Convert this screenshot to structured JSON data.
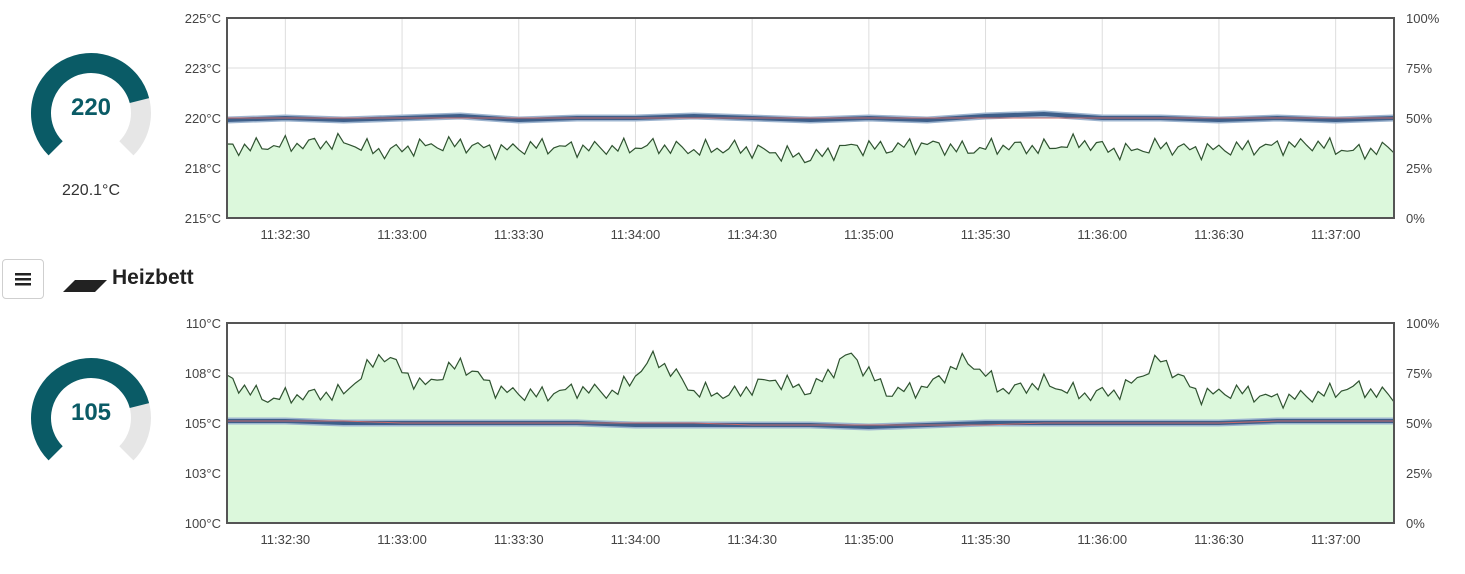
{
  "colors": {
    "accent": "#0a5b66",
    "gauge_track": "#e6e6e6",
    "setpoint_line": "#3e5f8a",
    "temp_line": "#2f5230",
    "area_fill": "#dcf8dc",
    "grid": "#dddddd",
    "frame": "#555555"
  },
  "extruder": {
    "gauge_value": "220",
    "gauge_level": 0.78,
    "current_temp": "220.1°C"
  },
  "section": {
    "menu_icon": "hamburger-menu-icon",
    "bed_icon": "heated-bed-icon",
    "title": "Heizbett"
  },
  "bed": {
    "gauge_value": "105",
    "gauge_level": 0.78
  },
  "chart_data": [
    {
      "type": "line",
      "y_ticks": [
        "215°C",
        "218°C",
        "220°C",
        "223°C",
        "225°C"
      ],
      "y_right_ticks": [
        "0%",
        "25%",
        "50%",
        "75%",
        "100%"
      ],
      "ylim": [
        215,
        225
      ],
      "y_right_lim": [
        0,
        100
      ],
      "x_ticks": [
        "11:32:30",
        "11:33:00",
        "11:33:30",
        "11:34:00",
        "11:34:30",
        "11:35:00",
        "11:35:30",
        "11:36:00",
        "11:36:30",
        "11:37:00"
      ],
      "x_range": [
        "11:32:15",
        "11:37:15"
      ],
      "grid": true,
      "series": [
        {
          "axis": "left",
          "kind": "setpoint-line",
          "values": [
            220.0,
            220.0,
            220.0,
            220.0,
            220.0,
            220.0,
            220.0,
            220.0,
            220.0,
            220.0,
            220.0,
            220.0,
            220.0,
            220.0,
            220.0,
            220.0,
            220.0,
            220.0,
            220.0,
            220.0,
            220.0
          ]
        },
        {
          "axis": "left",
          "kind": "temperature-line",
          "values": [
            219.9,
            220.0,
            219.9,
            220.0,
            220.1,
            219.9,
            220.0,
            220.0,
            220.1,
            220.0,
            219.9,
            220.0,
            219.9,
            220.1,
            220.2,
            220.0,
            220.0,
            219.9,
            220.0,
            219.9,
            220.0
          ]
        },
        {
          "axis": "right",
          "kind": "power-area",
          "values": [
            35,
            36,
            37,
            38,
            33,
            36,
            37,
            34,
            36,
            35,
            35,
            36,
            34,
            35,
            33,
            30,
            36,
            35,
            37,
            34,
            36,
            35,
            38,
            33,
            36,
            34,
            35,
            36,
            37,
            33,
            35
          ]
        }
      ]
    },
    {
      "type": "line",
      "y_ticks": [
        "100°C",
        "103°C",
        "105°C",
        "108°C",
        "110°C"
      ],
      "y_right_ticks": [
        "0%",
        "25%",
        "50%",
        "75%",
        "100%"
      ],
      "ylim": [
        100,
        110
      ],
      "y_right_lim": [
        0,
        100
      ],
      "x_ticks": [
        "11:32:30",
        "11:33:00",
        "11:33:30",
        "11:34:00",
        "11:34:30",
        "11:35:00",
        "11:35:30",
        "11:36:00",
        "11:36:30",
        "11:37:00"
      ],
      "x_range": [
        "11:32:15",
        "11:37:15"
      ],
      "grid": true,
      "series": [
        {
          "axis": "left",
          "kind": "setpoint-line",
          "values": [
            105.1,
            105.1,
            105.1,
            105.0,
            105.0,
            105.0,
            105.0,
            105.0,
            105.0,
            104.9,
            104.9,
            104.9,
            104.9,
            104.9,
            105.0,
            105.0,
            105.0,
            105.0,
            105.1,
            105.1,
            105.1
          ]
        },
        {
          "axis": "left",
          "kind": "temperature-line",
          "values": [
            105.1,
            105.1,
            105.0,
            105.0,
            105.0,
            105.0,
            105.0,
            104.9,
            104.9,
            104.9,
            104.9,
            104.8,
            104.9,
            105.0,
            105.0,
            105.0,
            105.0,
            105.0,
            105.1,
            105.1,
            105.1
          ]
        },
        {
          "axis": "right",
          "kind": "power-area",
          "values": [
            72,
            62,
            64,
            65,
            85,
            68,
            80,
            66,
            64,
            67,
            65,
            83,
            66,
            64,
            72,
            66,
            85,
            65,
            68,
            82,
            66,
            70,
            64,
            66,
            82,
            64,
            66,
            62,
            64,
            68,
            63
          ]
        }
      ]
    }
  ]
}
